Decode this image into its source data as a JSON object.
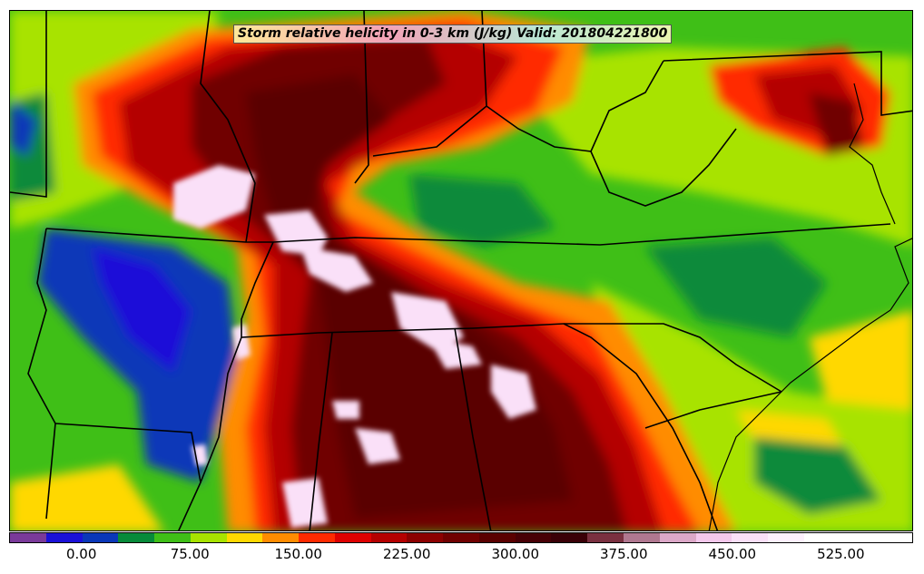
{
  "title": "Storm relative helicity in 0-3 km (J/kg) Valid: 201804221800",
  "colorbar": {
    "min": -50,
    "max": 575,
    "step": 25,
    "colors": [
      "#7a3a9a",
      "#1a10d8",
      "#0a37b8",
      "#078a3a",
      "#3fbf17",
      "#a8e300",
      "#ffd800",
      "#ff8c00",
      "#ff2a00",
      "#de0000",
      "#b40000",
      "#8c0000",
      "#700000",
      "#5a0000",
      "#480006",
      "#3a0008",
      "#7a3040",
      "#b07890",
      "#dca8c8",
      "#f4c8ec",
      "#fae0f8",
      "#fdf0fd",
      "#ffffff",
      "#ffffff",
      "#ffffff"
    ],
    "ticks": [
      "0.00",
      "75.00",
      "150.00",
      "225.00",
      "300.00",
      "375.00",
      "450.00",
      "525.00"
    ],
    "tick_values": [
      0,
      75,
      150,
      225,
      300,
      375,
      450,
      525
    ]
  },
  "colors": {
    "green_dark": "#078a3a",
    "green": "#3fbf17",
    "yellow_green": "#a8e300",
    "yellow": "#ffd800",
    "orange": "#ff8c00",
    "red": "#ff2a00",
    "dark_red": "#a00000",
    "maroon": "#5a0000",
    "pink_white": "#fae0f8",
    "blue": "#1a10d8",
    "border": "#000000"
  }
}
